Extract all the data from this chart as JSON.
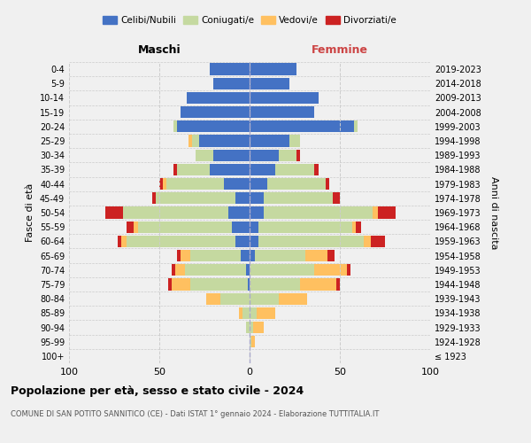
{
  "age_groups": [
    "100+",
    "95-99",
    "90-94",
    "85-89",
    "80-84",
    "75-79",
    "70-74",
    "65-69",
    "60-64",
    "55-59",
    "50-54",
    "45-49",
    "40-44",
    "35-39",
    "30-34",
    "25-29",
    "20-24",
    "15-19",
    "10-14",
    "5-9",
    "0-4"
  ],
  "birth_years": [
    "≤ 1923",
    "1924-1928",
    "1929-1933",
    "1934-1938",
    "1939-1943",
    "1944-1948",
    "1949-1953",
    "1954-1958",
    "1959-1963",
    "1964-1968",
    "1969-1973",
    "1974-1978",
    "1979-1983",
    "1984-1988",
    "1989-1993",
    "1994-1998",
    "1999-2003",
    "2004-2008",
    "2009-2013",
    "2014-2018",
    "2019-2023"
  ],
  "male": {
    "celibi": [
      0,
      0,
      0,
      0,
      0,
      1,
      2,
      5,
      8,
      10,
      12,
      8,
      14,
      22,
      20,
      28,
      40,
      38,
      35,
      20,
      22
    ],
    "coniugati": [
      0,
      0,
      2,
      4,
      16,
      32,
      34,
      28,
      60,
      52,
      58,
      44,
      32,
      18,
      10,
      4,
      2,
      0,
      0,
      0,
      0
    ],
    "vedovi": [
      0,
      0,
      0,
      2,
      8,
      10,
      5,
      5,
      3,
      2,
      0,
      0,
      2,
      0,
      0,
      2,
      0,
      0,
      0,
      0,
      0
    ],
    "divorziati": [
      0,
      0,
      0,
      0,
      0,
      2,
      2,
      2,
      2,
      4,
      10,
      2,
      2,
      2,
      0,
      0,
      0,
      0,
      0,
      0,
      0
    ]
  },
  "female": {
    "nubili": [
      0,
      0,
      0,
      0,
      0,
      0,
      0,
      3,
      5,
      5,
      8,
      8,
      10,
      14,
      16,
      22,
      58,
      36,
      38,
      22,
      26
    ],
    "coniugate": [
      0,
      1,
      2,
      4,
      16,
      28,
      36,
      28,
      58,
      52,
      60,
      38,
      32,
      22,
      10,
      6,
      2,
      0,
      0,
      0,
      0
    ],
    "vedove": [
      0,
      2,
      6,
      10,
      16,
      20,
      18,
      12,
      4,
      2,
      3,
      0,
      0,
      0,
      0,
      0,
      0,
      0,
      0,
      0,
      0
    ],
    "divorziate": [
      0,
      0,
      0,
      0,
      0,
      2,
      2,
      4,
      8,
      3,
      10,
      4,
      2,
      2,
      2,
      0,
      0,
      0,
      0,
      0,
      0
    ]
  },
  "color_celibi": "#4472c4",
  "color_coniugati": "#c5d9a0",
  "color_vedovi": "#ffc060",
  "color_divorziati": "#cc2222",
  "bg_color": "#f0f0f0",
  "grid_color": "#cccccc",
  "title": "Popolazione per età, sesso e stato civile - 2024",
  "subtitle": "COMUNE DI SAN POTITO SANNITICO (CE) - Dati ISTAT 1° gennaio 2024 - Elaborazione TUTTITALIA.IT",
  "xlabel_left": "Maschi",
  "xlabel_right": "Femmine",
  "ylabel_left": "Fasce di età",
  "ylabel_right": "Anni di nascita",
  "xlim": 100,
  "xticks": [
    -100,
    -50,
    0,
    50,
    100
  ],
  "xticklabels": [
    "100",
    "50",
    "0",
    "50",
    "100"
  ]
}
